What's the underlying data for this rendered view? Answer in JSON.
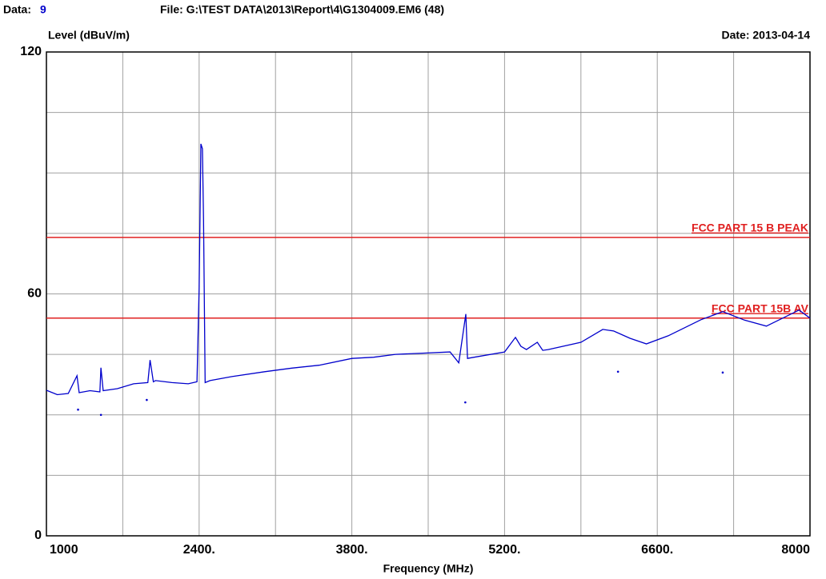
{
  "chart_data": {
    "type": "line",
    "data_label": "Data:",
    "data_number": "9",
    "file": "File: G:\\TEST DATA\\2013\\Report\\4\\G1304009.EM6  (48)",
    "ylabel": "Level (dBuV/m)",
    "date": "Date: 2013-04-14",
    "xlabel": "Frequency (MHz)",
    "xlim": [
      1000,
      8000
    ],
    "ylim": [
      0,
      120
    ],
    "xticks": [
      1000,
      {
        "value": 2400,
        "label": "2400."
      },
      {
        "value": 3800,
        "label": "3800."
      },
      {
        "value": 5200,
        "label": "5200."
      },
      {
        "value": 6600,
        "label": "6600."
      },
      8000
    ],
    "yticks": [
      0,
      60,
      120
    ],
    "xgrid": [
      1700,
      2400,
      3100,
      3800,
      4500,
      5200,
      5900,
      6600,
      7300
    ],
    "ygrid": [
      15,
      30,
      45,
      60,
      75,
      90,
      105
    ],
    "grid": true,
    "limits": [
      {
        "label": "FCC PART 15 B PEAK",
        "value": 74,
        "color": "#e02020"
      },
      {
        "label": "FCC PART 15B AV",
        "value": 54,
        "color": "#e02020"
      }
    ],
    "series": [
      {
        "color": "#0000cc",
        "x": [
          1000,
          1100,
          1200,
          1280,
          1300,
          1400,
          1490,
          1500,
          1520,
          1650,
          1800,
          1930,
          1950,
          1980,
          2000,
          2150,
          2300,
          2380,
          2400,
          2416,
          2430,
          2440,
          2455,
          2500,
          2700,
          3000,
          3250,
          3500,
          3800,
          4000,
          4200,
          4450,
          4700,
          4780,
          4845,
          4860,
          4900,
          5200,
          5300,
          5350,
          5400,
          5500,
          5550,
          5600,
          5900,
          6100,
          6200,
          6350,
          6500,
          6700,
          7000,
          7200,
          7400,
          7600,
          7900,
          8000
        ],
        "values": [
          36.1,
          35.0,
          35.3,
          39.7,
          35.5,
          36.0,
          35.7,
          41.7,
          36.0,
          36.5,
          37.7,
          38.0,
          43.6,
          38.2,
          38.5,
          38.0,
          37.7,
          38.2,
          61.5,
          97.2,
          96.0,
          78.4,
          38.0,
          38.5,
          39.5,
          40.7,
          41.6,
          42.3,
          44.0,
          44.3,
          45.0,
          45.3,
          45.6,
          42.9,
          55.0,
          44.0,
          44.2,
          45.6,
          49.2,
          47.0,
          46.2,
          48.0,
          46.0,
          46.2,
          48.0,
          51.2,
          50.8,
          49.0,
          47.6,
          49.6,
          53.6,
          55.6,
          53.5,
          52.0,
          56.0,
          54.0
        ]
      }
    ],
    "points": {
      "color": "#0000cc",
      "x": [
        1290,
        1500,
        1920,
        4840,
        6240,
        7200
      ],
      "values": [
        31.3,
        30.0,
        33.7,
        33.1,
        40.7,
        40.5
      ]
    }
  }
}
